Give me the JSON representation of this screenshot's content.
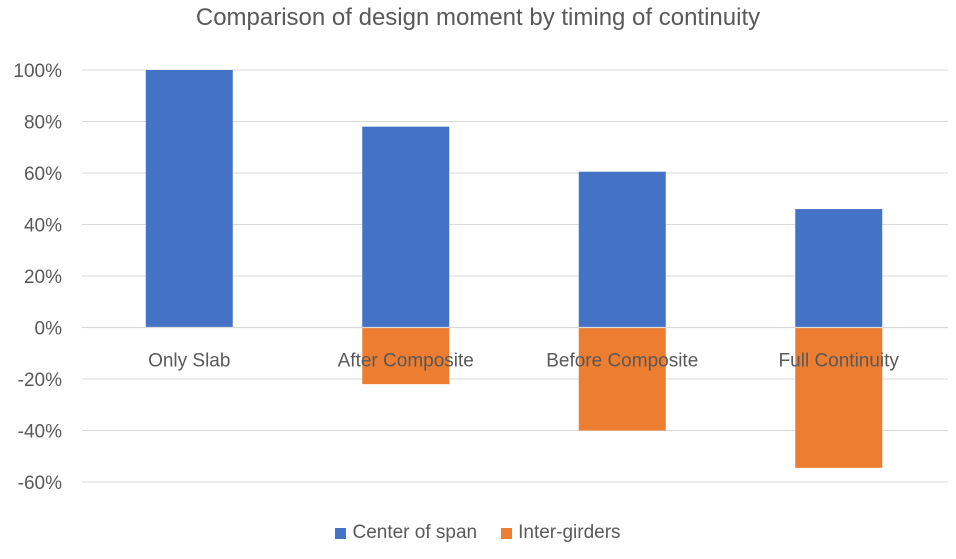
{
  "chart_data": {
    "type": "bar",
    "title": "Comparison of design moment by timing of continuity",
    "xlabel": "",
    "ylabel": "",
    "categories": [
      "Only Slab",
      "After Composite",
      "Before Composite",
      "Full Continuity"
    ],
    "series": [
      {
        "name": "Center of span",
        "values": [
          100,
          78,
          60.5,
          46
        ],
        "color": "#4472C4"
      },
      {
        "name": "Inter-girders",
        "values": [
          0,
          -22,
          -40,
          -54.5
        ],
        "color": "#ED7D31"
      }
    ],
    "ylim": [
      -60,
      100
    ],
    "yticks": [
      100,
      80,
      60,
      40,
      20,
      0,
      -20,
      -40,
      -60
    ],
    "ytick_labels": [
      "100%",
      "80%",
      "60%",
      "40%",
      "20%",
      "0%",
      "-20%",
      "-40%",
      "-60%"
    ],
    "grid": true,
    "gridline_color": "#D9D9D9",
    "legend_position": "bottom"
  }
}
